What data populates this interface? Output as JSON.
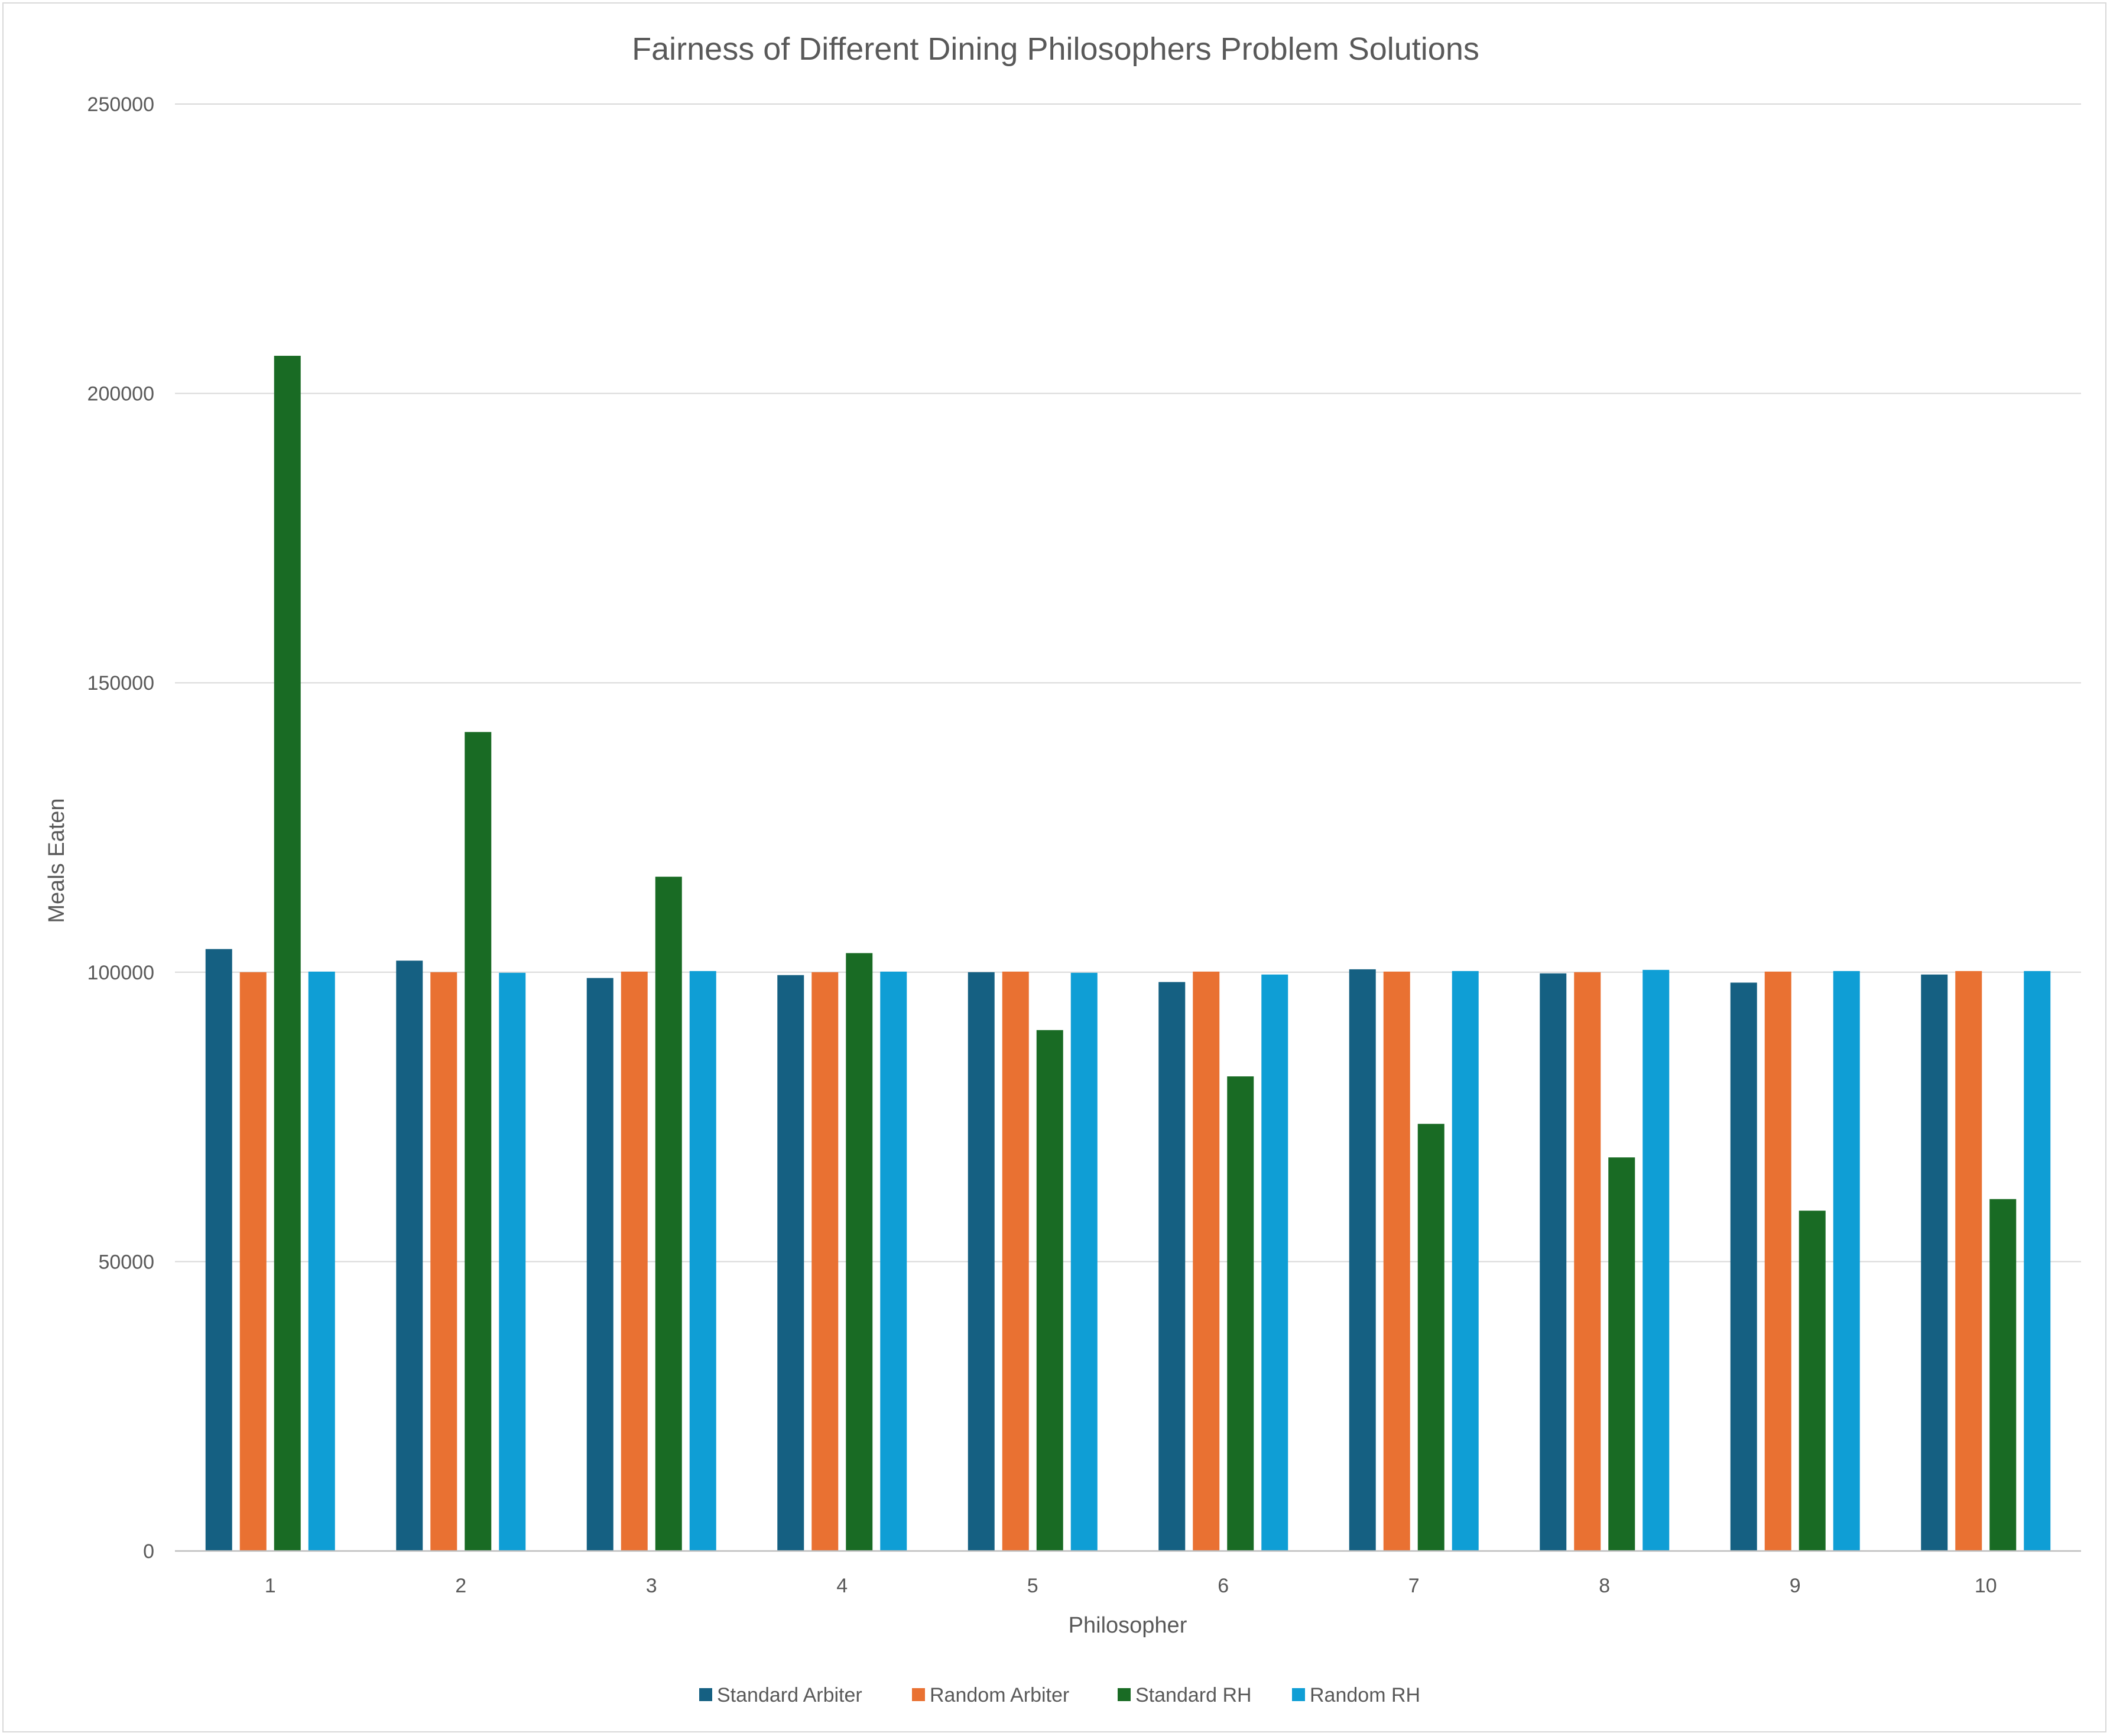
{
  "chart_data": {
    "type": "bar",
    "title": "Fairness of Different Dining Philosophers Problem Solutions",
    "xlabel": "Philosopher",
    "ylabel": "Meals Eaten",
    "categories": [
      "1",
      "2",
      "3",
      "4",
      "5",
      "6",
      "7",
      "8",
      "9",
      "10"
    ],
    "ylim": [
      0,
      250000
    ],
    "yticks": [
      "0",
      "50000",
      "100000",
      "150000",
      "200000",
      "250000"
    ],
    "grid": true,
    "legend_position": "bottom",
    "series": [
      {
        "name": "Standard Arbiter",
        "color": "#156082",
        "values": [
          104000,
          102000,
          99000,
          99500,
          100000,
          98300,
          100500,
          99800,
          98200,
          99600
        ]
      },
      {
        "name": "Random Arbiter",
        "color": "#E97132",
        "values": [
          100000,
          100000,
          100100,
          100000,
          100100,
          100100,
          100100,
          100000,
          100100,
          100200
        ]
      },
      {
        "name": "Standard RH",
        "color": "#196B24",
        "values": [
          206500,
          141500,
          116500,
          103300,
          90000,
          82000,
          73800,
          68000,
          58800,
          60800
        ]
      },
      {
        "name": "Random RH",
        "color": "#0F9ED5",
        "values": [
          100100,
          99900,
          100200,
          100100,
          99900,
          99600,
          100200,
          100400,
          100200,
          100200
        ]
      }
    ]
  }
}
